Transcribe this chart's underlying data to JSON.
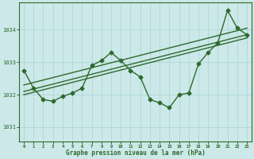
{
  "title": "Graphe pression niveau de la mer (hPa)",
  "main_line": {
    "x": [
      0,
      1,
      2,
      3,
      4,
      5,
      6,
      7,
      8,
      9,
      10,
      11,
      12,
      13,
      14,
      15,
      16,
      17,
      18,
      19,
      20,
      21,
      22,
      23
    ],
    "y": [
      1032.75,
      1032.2,
      1031.85,
      1031.8,
      1031.95,
      1032.05,
      1032.2,
      1032.9,
      1033.05,
      1033.3,
      1033.05,
      1032.75,
      1032.55,
      1031.85,
      1031.75,
      1031.6,
      1032.0,
      1032.05,
      1032.95,
      1033.3,
      1033.6,
      1034.6,
      1034.05,
      1033.85
    ]
  },
  "trend_line1": {
    "x": [
      0,
      23
    ],
    "y": [
      1032.1,
      1033.85
    ]
  },
  "trend_line2": {
    "x": [
      0,
      23
    ],
    "y": [
      1032.3,
      1034.05
    ]
  },
  "trend_line3": {
    "x": [
      0,
      23
    ],
    "y": [
      1032.0,
      1033.75
    ]
  },
  "ylim": [
    1030.55,
    1034.85
  ],
  "yticks": [
    1031,
    1032,
    1033,
    1034
  ],
  "xticks": [
    0,
    1,
    2,
    3,
    4,
    5,
    6,
    7,
    8,
    9,
    10,
    11,
    12,
    13,
    14,
    15,
    16,
    17,
    18,
    19,
    20,
    21,
    22,
    23
  ],
  "line_color": "#2d6a2d",
  "bg_color": "#cce8e8",
  "grid_color": "#a8d4d4",
  "marker": "D",
  "marker_size": 2.5,
  "line_width": 1.0
}
